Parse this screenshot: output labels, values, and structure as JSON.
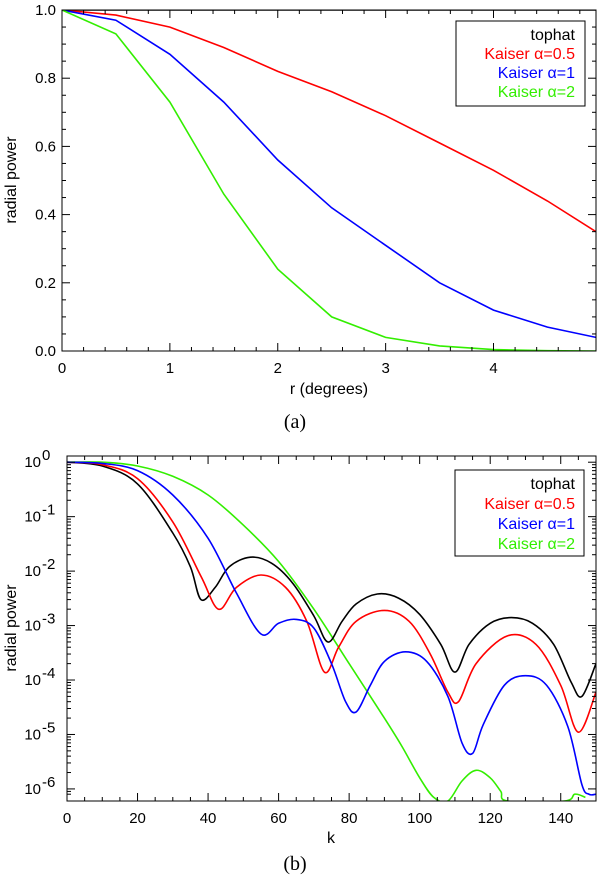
{
  "chart_data": [
    {
      "type": "line",
      "panel_label": "(a)",
      "xlabel": "r (degrees)",
      "ylabel": "radial power",
      "xlim": [
        0,
        4.95
      ],
      "ylim": [
        0,
        1.0
      ],
      "xticks": [
        0,
        1,
        2,
        3,
        4
      ],
      "yticks": [
        0.0,
        0.2,
        0.4,
        0.6,
        0.8,
        1.0
      ],
      "ytick_labels": [
        "0.0",
        "0.2",
        "0.4",
        "0.6",
        "0.8",
        "1.0"
      ],
      "legend_position": "top-right",
      "series": [
        {
          "name": "tophat",
          "color": "#000000",
          "x": [
            0,
            4.95
          ],
          "y": [
            1.0,
            1.0
          ]
        },
        {
          "name": "Kaiser α=0.5",
          "color": "#ff0000",
          "x": [
            0,
            0.5,
            1.0,
            1.5,
            2.0,
            2.5,
            3.0,
            3.5,
            4.0,
            4.5,
            4.95
          ],
          "y": [
            1.0,
            0.985,
            0.95,
            0.89,
            0.82,
            0.76,
            0.69,
            0.61,
            0.53,
            0.44,
            0.35
          ]
        },
        {
          "name": "Kaiser α=1",
          "color": "#0000ff",
          "x": [
            0,
            0.5,
            1.0,
            1.5,
            2.0,
            2.5,
            3.0,
            3.5,
            4.0,
            4.5,
            4.95
          ],
          "y": [
            1.0,
            0.97,
            0.87,
            0.73,
            0.56,
            0.42,
            0.31,
            0.2,
            0.12,
            0.07,
            0.04
          ]
        },
        {
          "name": "Kaiser α=2",
          "color": "#33ee00",
          "x": [
            0,
            0.5,
            1.0,
            1.5,
            2.0,
            2.5,
            3.0,
            3.5,
            4.0,
            4.5,
            4.95
          ],
          "y": [
            1.0,
            0.93,
            0.73,
            0.46,
            0.24,
            0.1,
            0.04,
            0.015,
            0.004,
            0.001,
            0.0
          ]
        }
      ],
      "legend": [
        {
          "label": "tophat",
          "color": "#000000"
        },
        {
          "label": "Kaiser α=0.5",
          "color": "#ff0000"
        },
        {
          "label": "Kaiser α=1",
          "color": "#0000ff"
        },
        {
          "label": "Kaiser α=2",
          "color": "#33ee00"
        }
      ]
    },
    {
      "type": "line",
      "panel_label": "(b)",
      "xlabel": "k",
      "ylabel": "radial power",
      "xscale": "linear",
      "yscale": "log",
      "xlim": [
        0,
        150
      ],
      "ylim": [
        6e-07,
        1.3
      ],
      "xticks": [
        0,
        20,
        40,
        60,
        80,
        100,
        120,
        140
      ],
      "yticks_exp": [
        0,
        -1,
        -2,
        -3,
        -4,
        -5,
        -6
      ],
      "legend_position": "top-right",
      "series": [
        {
          "name": "tophat",
          "color": "#000000",
          "x": [
            0,
            10,
            20,
            30,
            35,
            38,
            42,
            46,
            52,
            58,
            64,
            70,
            74,
            78,
            82,
            88,
            94,
            100,
            106,
            110,
            114,
            120,
            126,
            132,
            138,
            143,
            146,
            150
          ],
          "y": [
            1.0,
            0.85,
            0.4,
            0.05,
            0.012,
            0.003,
            0.005,
            0.012,
            0.018,
            0.014,
            0.006,
            0.0015,
            0.0005,
            0.0012,
            0.0025,
            0.0038,
            0.0032,
            0.0016,
            0.00045,
            0.00014,
            0.00045,
            0.0011,
            0.0014,
            0.0011,
            0.00045,
            9e-05,
            5e-05,
            0.0002
          ]
        },
        {
          "name": "Kaiser α=0.5",
          "color": "#ff0000",
          "x": [
            0,
            10,
            20,
            30,
            38,
            43,
            48,
            55,
            62,
            68,
            73,
            77,
            82,
            90,
            97,
            103,
            108,
            111,
            116,
            125,
            133,
            140,
            145,
            150
          ],
          "y": [
            1.0,
            0.9,
            0.5,
            0.08,
            0.008,
            0.002,
            0.005,
            0.0085,
            0.005,
            0.0012,
            0.00014,
            0.0004,
            0.0012,
            0.0019,
            0.0012,
            0.0003,
            6e-05,
            4e-05,
            0.0002,
            0.00065,
            0.00045,
            8e-05,
            1.1e-05,
            6e-05
          ]
        },
        {
          "name": "Kaiser α=1",
          "color": "#0000ff",
          "x": [
            0,
            10,
            20,
            30,
            40,
            48,
            55,
            60,
            65,
            70,
            75,
            79,
            82,
            86,
            90,
            96,
            102,
            108,
            112,
            115,
            118,
            124,
            130,
            136,
            142,
            146,
            148,
            150
          ],
          "y": [
            1.0,
            0.95,
            0.7,
            0.25,
            0.04,
            0.004,
            0.0007,
            0.0011,
            0.0013,
            0.0009,
            0.0002,
            4e-05,
            2.6e-05,
            8e-05,
            0.00022,
            0.00033,
            0.00022,
            5e-05,
            7e-06,
            4.5e-06,
            1.5e-05,
            8e-05,
            0.00012,
            8e-05,
            1.4e-05,
            1.2e-06,
            8e-07,
            8e-07
          ]
        },
        {
          "name": "Kaiser α=2",
          "color": "#33ee00",
          "x": [
            0,
            10,
            20,
            30,
            40,
            50,
            60,
            70,
            80,
            90,
            95,
            100,
            104,
            108,
            112,
            116,
            120,
            123,
            125,
            141,
            144,
            147
          ],
          "y": [
            1.0,
            1.0,
            0.85,
            0.55,
            0.25,
            0.07,
            0.015,
            0.002,
            0.0002,
            2e-05,
            6e-06,
            1.6e-06,
            7e-07,
            6e-07,
            1.4e-06,
            2.2e-06,
            1.6e-06,
            9e-07,
            6e-07,
            6e-07,
            8e-07,
            7e-07
          ]
        }
      ],
      "legend": [
        {
          "label": "tophat",
          "color": "#000000"
        },
        {
          "label": "Kaiser α=0.5",
          "color": "#ff0000"
        },
        {
          "label": "Kaiser α=1",
          "color": "#0000ff"
        },
        {
          "label": "Kaiser α=2",
          "color": "#33ee00"
        }
      ]
    }
  ]
}
